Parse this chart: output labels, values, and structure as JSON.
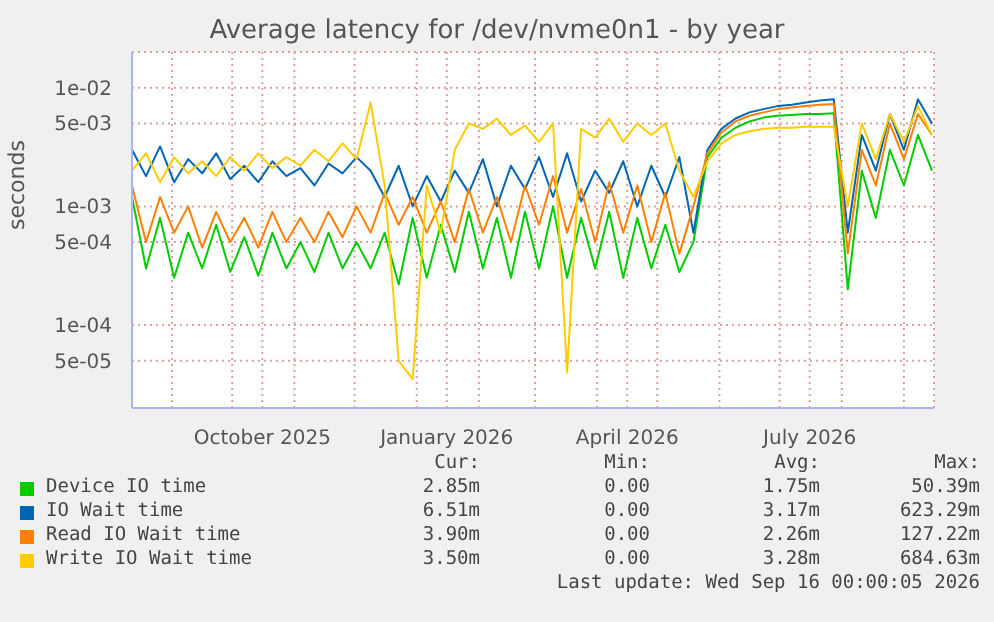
{
  "chart_data": {
    "type": "line",
    "title": "Average latency for /dev/nvme0n1 - by year",
    "ylabel": "seconds",
    "x": [
      "2025-08-12",
      "2025-08-19",
      "2025-08-26",
      "2025-09-02",
      "2025-09-09",
      "2025-09-16",
      "2025-09-23",
      "2025-09-30",
      "2025-10-07",
      "2025-10-14",
      "2025-10-21",
      "2025-10-28",
      "2025-11-04",
      "2025-11-11",
      "2025-11-18",
      "2025-11-25",
      "2025-12-02",
      "2025-12-09",
      "2025-12-16",
      "2025-12-23",
      "2025-12-30",
      "2026-01-06",
      "2026-01-13",
      "2026-01-20",
      "2026-01-27",
      "2026-02-03",
      "2026-02-10",
      "2026-02-17",
      "2026-02-24",
      "2026-03-03",
      "2026-03-10",
      "2026-03-17",
      "2026-03-24",
      "2026-03-31",
      "2026-04-07",
      "2026-04-14",
      "2026-04-21",
      "2026-04-28",
      "2026-05-05",
      "2026-05-12",
      "2026-05-19",
      "2026-05-26",
      "2026-06-02",
      "2026-06-09",
      "2026-06-16",
      "2026-06-23",
      "2026-06-30",
      "2026-07-07",
      "2026-07-14",
      "2026-07-21",
      "2026-07-28",
      "2026-08-04",
      "2026-08-11",
      "2026-08-18",
      "2026-08-25",
      "2026-09-01",
      "2026-09-08",
      "2026-09-15"
    ],
    "series": [
      {
        "name": "Device IO time",
        "color": "#00cc00",
        "values": [
          0.0012,
          0.0003,
          0.0008,
          0.00025,
          0.0006,
          0.0003,
          0.0007,
          0.00028,
          0.00055,
          0.00026,
          0.0006,
          0.0003,
          0.0005,
          0.00028,
          0.0006,
          0.0003,
          0.0005,
          0.0003,
          0.0006,
          0.00022,
          0.0008,
          0.00025,
          0.0007,
          0.00028,
          0.0009,
          0.0003,
          0.0008,
          0.00025,
          0.0009,
          0.0003,
          0.001,
          0.00025,
          0.0008,
          0.0003,
          0.0009,
          0.00025,
          0.0008,
          0.0003,
          0.0007,
          0.00028,
          0.0005,
          0.0026,
          0.0038,
          0.0046,
          0.0052,
          0.0056,
          0.0058,
          0.0059,
          0.006,
          0.006,
          0.0061,
          0.0002,
          0.002,
          0.0008,
          0.003,
          0.0015,
          0.004,
          0.002
        ]
      },
      {
        "name": "IO Wait time",
        "color": "#0066b3",
        "values": [
          0.003,
          0.0018,
          0.0032,
          0.0016,
          0.0025,
          0.0019,
          0.0028,
          0.0017,
          0.0022,
          0.0016,
          0.0024,
          0.0018,
          0.0021,
          0.0015,
          0.0023,
          0.0019,
          0.0026,
          0.002,
          0.0012,
          0.0022,
          0.001,
          0.0018,
          0.0011,
          0.002,
          0.0013,
          0.0025,
          0.001,
          0.0022,
          0.0014,
          0.0026,
          0.0012,
          0.0028,
          0.0011,
          0.002,
          0.0013,
          0.0024,
          0.001,
          0.0022,
          0.0012,
          0.0026,
          0.0006,
          0.003,
          0.0045,
          0.0055,
          0.0062,
          0.0066,
          0.007,
          0.0072,
          0.0075,
          0.0078,
          0.008,
          0.0006,
          0.004,
          0.002,
          0.006,
          0.003,
          0.008,
          0.005
        ]
      },
      {
        "name": "Read IO Wait time",
        "color": "#ff8000",
        "values": [
          0.0015,
          0.0005,
          0.0012,
          0.0006,
          0.001,
          0.00045,
          0.0009,
          0.0005,
          0.0008,
          0.00045,
          0.0009,
          0.0005,
          0.0008,
          0.0005,
          0.0009,
          0.00055,
          0.001,
          0.0006,
          0.0013,
          0.0007,
          0.0012,
          0.0006,
          0.0011,
          0.0005,
          0.0014,
          0.0006,
          0.0012,
          0.0005,
          0.0015,
          0.0007,
          0.0018,
          0.0006,
          0.0014,
          0.0005,
          0.0016,
          0.0006,
          0.0015,
          0.0005,
          0.0013,
          0.0004,
          0.001,
          0.0028,
          0.0042,
          0.0052,
          0.0058,
          0.0062,
          0.0066,
          0.0068,
          0.007,
          0.0072,
          0.0073,
          0.0004,
          0.003,
          0.0015,
          0.005,
          0.0025,
          0.006,
          0.004
        ]
      },
      {
        "name": "Write IO Wait time",
        "color": "#ffcc00",
        "values": [
          0.002,
          0.0028,
          0.0016,
          0.0026,
          0.0019,
          0.0024,
          0.0018,
          0.0026,
          0.002,
          0.0028,
          0.0021,
          0.0026,
          0.0022,
          0.003,
          0.0024,
          0.0034,
          0.0025,
          0.0075,
          0.0015,
          5e-05,
          3.5e-05,
          0.0015,
          0.0006,
          0.003,
          0.005,
          0.0045,
          0.0055,
          0.004,
          0.0048,
          0.0035,
          0.005,
          4e-05,
          0.0045,
          0.0038,
          0.0055,
          0.0035,
          0.005,
          0.004,
          0.005,
          0.002,
          0.0012,
          0.0024,
          0.0034,
          0.004,
          0.0043,
          0.0045,
          0.0046,
          0.0046,
          0.0047,
          0.0047,
          0.0047,
          0.001,
          0.005,
          0.0025,
          0.006,
          0.0035,
          0.007,
          0.004
        ]
      }
    ],
    "log": "y",
    "grid": true,
    "legend": "bottom",
    "xlim": [
      "2025-08-12",
      "2026-09-16"
    ],
    "xticks": [
      {
        "value": "2025-09-01",
        "label": null
      },
      {
        "value": "2025-10-01",
        "label": null
      },
      {
        "value": "2025-10-16",
        "label": "October 2025"
      },
      {
        "value": "2025-11-01",
        "label": null
      },
      {
        "value": "2025-12-01",
        "label": null
      },
      {
        "value": "2026-01-01",
        "label": null
      },
      {
        "value": "2026-01-16",
        "label": "January 2026"
      },
      {
        "value": "2026-02-01",
        "label": null
      },
      {
        "value": "2026-03-01",
        "label": null
      },
      {
        "value": "2026-04-01",
        "label": null
      },
      {
        "value": "2026-04-16",
        "label": "April 2026"
      },
      {
        "value": "2026-05-01",
        "label": null
      },
      {
        "value": "2026-06-01",
        "label": null
      },
      {
        "value": "2026-07-01",
        "label": null
      },
      {
        "value": "2026-07-16",
        "label": "July 2026"
      },
      {
        "value": "2026-08-01",
        "label": null
      },
      {
        "value": "2026-09-01",
        "label": null
      }
    ],
    "ylim": [
      2e-05,
      0.02
    ],
    "yticks": [
      {
        "value": 5e-05,
        "label": "5e-05"
      },
      {
        "value": 0.0001,
        "label": "1e-04"
      },
      {
        "value": 0.0005,
        "label": "5e-04"
      },
      {
        "value": 0.001,
        "label": "1e-03"
      },
      {
        "value": 0.005,
        "label": "5e-03"
      },
      {
        "value": 0.01,
        "label": "1e-02"
      }
    ],
    "annotations": [
      "Cur:",
      "Min:",
      "Avg:",
      "Max:",
      "2.85m",
      "0.00",
      "1.75m",
      "50.39m",
      "6.51m",
      "0.00",
      "3.17m",
      "623.29m",
      "3.90m",
      "0.00",
      "2.26m",
      "127.22m",
      "3.50m",
      "0.00",
      "3.28m",
      "684.63m",
      "Last update: Wed Sep 16 00:00:05 2026"
    ]
  }
}
